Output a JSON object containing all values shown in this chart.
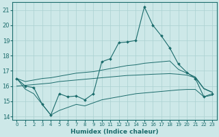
{
  "xlabel": "Humidex (Indice chaleur)",
  "x": [
    0,
    1,
    2,
    3,
    4,
    5,
    6,
    7,
    8,
    9,
    10,
    11,
    12,
    13,
    14,
    15,
    16,
    17,
    18,
    19,
    20,
    21,
    22,
    23
  ],
  "line_main": [
    16.5,
    16.0,
    15.9,
    14.8,
    14.1,
    15.5,
    15.3,
    15.35,
    15.1,
    15.5,
    17.6,
    17.8,
    18.85,
    18.9,
    19.0,
    21.2,
    20.0,
    19.3,
    18.5,
    17.45,
    16.9,
    16.5,
    15.3,
    15.5
  ],
  "line_upper": [
    16.5,
    16.3,
    16.4,
    16.5,
    16.55,
    16.65,
    16.75,
    16.85,
    16.9,
    16.95,
    17.05,
    17.15,
    17.25,
    17.35,
    17.4,
    17.5,
    17.55,
    17.6,
    17.65,
    17.1,
    16.85,
    16.6,
    15.85,
    15.6
  ],
  "line_mid": [
    16.0,
    16.05,
    16.1,
    16.15,
    16.2,
    16.3,
    16.35,
    16.4,
    16.45,
    16.5,
    16.55,
    16.6,
    16.65,
    16.7,
    16.72,
    16.75,
    16.78,
    16.8,
    16.82,
    16.78,
    16.72,
    16.55,
    15.82,
    15.58
  ],
  "line_lower": [
    16.5,
    15.8,
    15.5,
    14.8,
    14.1,
    14.4,
    14.6,
    14.8,
    14.7,
    14.9,
    15.1,
    15.2,
    15.3,
    15.4,
    15.5,
    15.55,
    15.6,
    15.65,
    15.7,
    15.75,
    15.78,
    15.78,
    15.3,
    15.4
  ],
  "ylim": [
    13.8,
    21.5
  ],
  "yticks": [
    14,
    15,
    16,
    17,
    18,
    19,
    20,
    21
  ],
  "xlim": [
    -0.5,
    23.5
  ],
  "bg_color": "#cde8e8",
  "line_color": "#1a6b6b",
  "grid_color": "#aad0d0"
}
